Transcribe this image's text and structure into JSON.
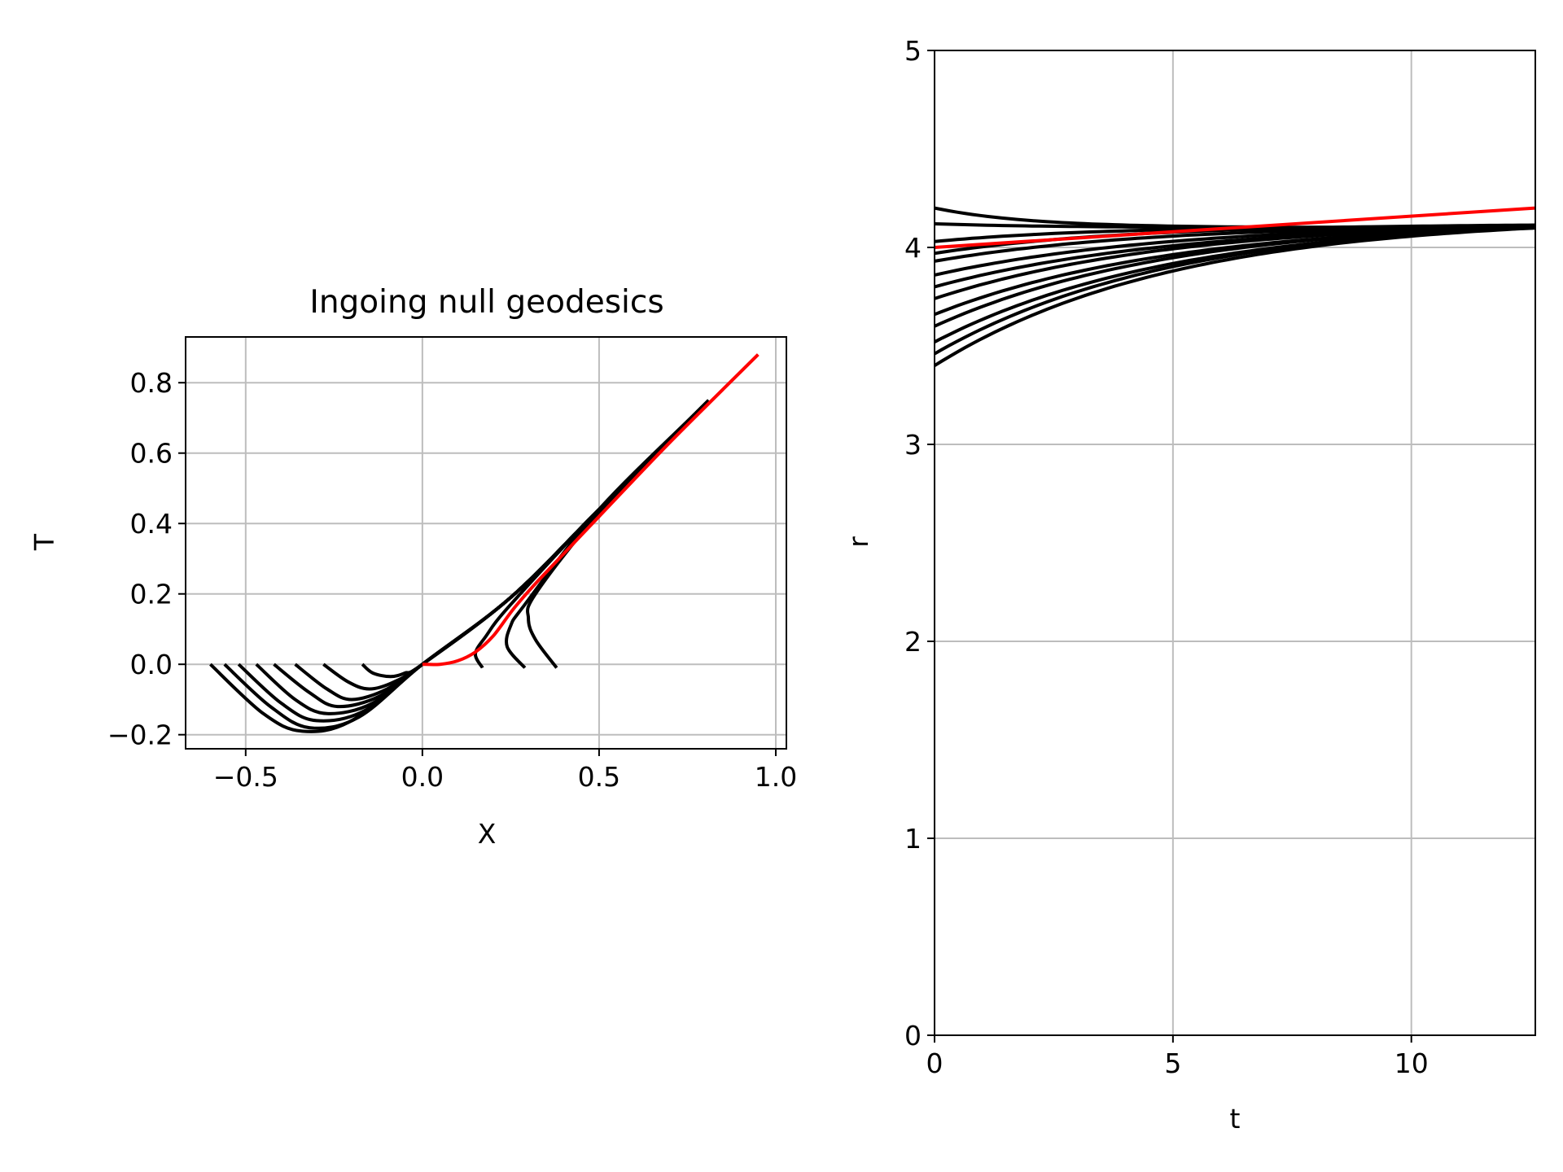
{
  "chart_data": [
    {
      "type": "line",
      "title": "Ingoing null geodesics",
      "xlabel": "X",
      "ylabel": "T",
      "xlim": [
        -0.67,
        1.03
      ],
      "ylim": [
        -0.24,
        0.93
      ],
      "xticks": [
        -0.5,
        0.0,
        0.5,
        1.0
      ],
      "xtick_labels": [
        "−0.5",
        "0.0",
        "0.5",
        "1.0"
      ],
      "yticks": [
        -0.2,
        0.0,
        0.2,
        0.4,
        0.6,
        0.8
      ],
      "ytick_labels": [
        "−0.2",
        "0.0",
        "0.2",
        "0.4",
        "0.6",
        "0.8"
      ],
      "grid": true,
      "series": [
        {
          "color": "#000000",
          "points": [
            [
              -0.6,
              0.0
            ],
            [
              -0.45,
              -0.14
            ],
            [
              -0.34,
              -0.19
            ],
            [
              -0.2,
              -0.16
            ],
            [
              0.0,
              0.0
            ],
            [
              0.25,
              0.19
            ],
            [
              0.5,
              0.44
            ],
            [
              0.81,
              0.75
            ]
          ]
        },
        {
          "color": "#000000",
          "points": [
            [
              -0.56,
              0.0
            ],
            [
              -0.43,
              -0.12
            ],
            [
              -0.32,
              -0.18
            ],
            [
              -0.18,
              -0.15
            ],
            [
              0.0,
              0.0
            ],
            [
              0.25,
              0.19
            ],
            [
              0.5,
              0.44
            ],
            [
              0.81,
              0.75
            ]
          ]
        },
        {
          "color": "#000000",
          "points": [
            [
              -0.52,
              0.0
            ],
            [
              -0.4,
              -0.11
            ],
            [
              -0.3,
              -0.16
            ],
            [
              -0.16,
              -0.13
            ],
            [
              0.0,
              0.0
            ],
            [
              0.25,
              0.19
            ],
            [
              0.5,
              0.44
            ],
            [
              0.8,
              0.74
            ]
          ]
        },
        {
          "color": "#000000",
          "points": [
            [
              -0.47,
              0.0
            ],
            [
              -0.36,
              -0.1
            ],
            [
              -0.27,
              -0.14
            ],
            [
              -0.14,
              -0.11
            ],
            [
              0.0,
              0.0
            ],
            [
              0.25,
              0.19
            ],
            [
              0.5,
              0.44
            ],
            [
              0.8,
              0.74
            ]
          ]
        },
        {
          "color": "#000000",
          "points": [
            [
              -0.42,
              0.0
            ],
            [
              -0.32,
              -0.08
            ],
            [
              -0.24,
              -0.12
            ],
            [
              -0.12,
              -0.09
            ],
            [
              0.0,
              0.0
            ],
            [
              0.25,
              0.19
            ],
            [
              0.5,
              0.44
            ],
            [
              0.79,
              0.73
            ]
          ]
        },
        {
          "color": "#000000",
          "points": [
            [
              -0.36,
              0.0
            ],
            [
              -0.27,
              -0.07
            ],
            [
              -0.2,
              -0.1
            ],
            [
              -0.1,
              -0.07
            ],
            [
              0.0,
              0.0
            ],
            [
              0.25,
              0.19
            ],
            [
              0.5,
              0.44
            ],
            [
              0.79,
              0.73
            ]
          ]
        },
        {
          "color": "#000000",
          "points": [
            [
              -0.28,
              0.0
            ],
            [
              -0.21,
              -0.05
            ],
            [
              -0.15,
              -0.07
            ],
            [
              -0.08,
              -0.05
            ],
            [
              0.0,
              0.0
            ],
            [
              0.25,
              0.19
            ],
            [
              0.5,
              0.44
            ],
            [
              0.78,
              0.72
            ]
          ]
        },
        {
          "color": "#000000",
          "points": [
            [
              -0.17,
              0.0
            ],
            [
              -0.14,
              -0.025
            ],
            [
              -0.09,
              -0.035
            ],
            [
              -0.05,
              -0.025
            ],
            [
              0.0,
              0.0
            ],
            [
              0.25,
              0.19
            ],
            [
              0.5,
              0.44
            ],
            [
              0.78,
              0.72
            ]
          ]
        },
        {
          "color": "#000000",
          "points": [
            [
              0.17,
              -0.01
            ],
            [
              0.15,
              0.03
            ],
            [
              0.18,
              0.08
            ],
            [
              0.25,
              0.17
            ],
            [
              0.5,
              0.44
            ],
            [
              0.77,
              0.71
            ]
          ]
        },
        {
          "color": "#000000",
          "points": [
            [
              0.29,
              -0.01
            ],
            [
              0.24,
              0.05
            ],
            [
              0.25,
              0.11
            ],
            [
              0.29,
              0.17
            ],
            [
              0.5,
              0.44
            ],
            [
              0.77,
              0.71
            ]
          ]
        },
        {
          "color": "#000000",
          "points": [
            [
              0.38,
              -0.01
            ],
            [
              0.32,
              0.07
            ],
            [
              0.3,
              0.13
            ],
            [
              0.32,
              0.2
            ],
            [
              0.5,
              0.43
            ],
            [
              0.76,
              0.7
            ]
          ]
        },
        {
          "color": "#ff0000",
          "points": [
            [
              0.0,
              0.0
            ],
            [
              0.05,
              0.0
            ],
            [
              0.1,
              0.01
            ],
            [
              0.15,
              0.035
            ],
            [
              0.2,
              0.08
            ],
            [
              0.26,
              0.16
            ],
            [
              0.33,
              0.24
            ],
            [
              0.5,
              0.42
            ],
            [
              0.7,
              0.63
            ],
            [
              0.95,
              0.88
            ]
          ]
        }
      ]
    },
    {
      "type": "line",
      "title": "",
      "xlabel": "t",
      "ylabel": "r",
      "xlim": [
        0,
        12.6
      ],
      "ylim": [
        0,
        5
      ],
      "xticks": [
        0,
        5,
        10
      ],
      "xtick_labels": [
        "0",
        "5",
        "10"
      ],
      "yticks": [
        0,
        1,
        2,
        3,
        4,
        5
      ],
      "ytick_labels": [
        "0",
        "1",
        "2",
        "3",
        "4",
        "5"
      ],
      "grid": true,
      "curve_model": "r(t) = r_end + (r0 - r_end) * exp(-t / tau)",
      "series": [
        {
          "color": "#000000",
          "r0": 4.2,
          "r_end": 4.1,
          "tau": 2.0
        },
        {
          "color": "#000000",
          "r0": 4.12,
          "r_end": 4.1,
          "tau": 2.5
        },
        {
          "color": "#000000",
          "r0": 4.03,
          "r_end": 4.11,
          "tau": 3.5
        },
        {
          "color": "#000000",
          "r0": 3.97,
          "r_end": 4.12,
          "tau": 4.0
        },
        {
          "color": "#000000",
          "r0": 3.93,
          "r_end": 4.12,
          "tau": 4.5
        },
        {
          "color": "#000000",
          "r0": 3.86,
          "r_end": 4.13,
          "tau": 5.0
        },
        {
          "color": "#000000",
          "r0": 3.8,
          "r_end": 4.13,
          "tau": 5.0
        },
        {
          "color": "#000000",
          "r0": 3.74,
          "r_end": 4.14,
          "tau": 5.0
        },
        {
          "color": "#000000",
          "r0": 3.66,
          "r_end": 4.14,
          "tau": 5.0
        },
        {
          "color": "#000000",
          "r0": 3.6,
          "r_end": 4.15,
          "tau": 5.0
        },
        {
          "color": "#000000",
          "r0": 3.52,
          "r_end": 4.15,
          "tau": 5.0
        },
        {
          "color": "#000000",
          "r0": 3.46,
          "r_end": 4.16,
          "tau": 5.0
        },
        {
          "color": "#000000",
          "r0": 3.4,
          "r_end": 4.16,
          "tau": 5.0
        },
        {
          "color": "#ff0000",
          "linear": [
            [
              0,
              4.0
            ],
            [
              12.6,
              4.2
            ]
          ]
        }
      ]
    }
  ]
}
